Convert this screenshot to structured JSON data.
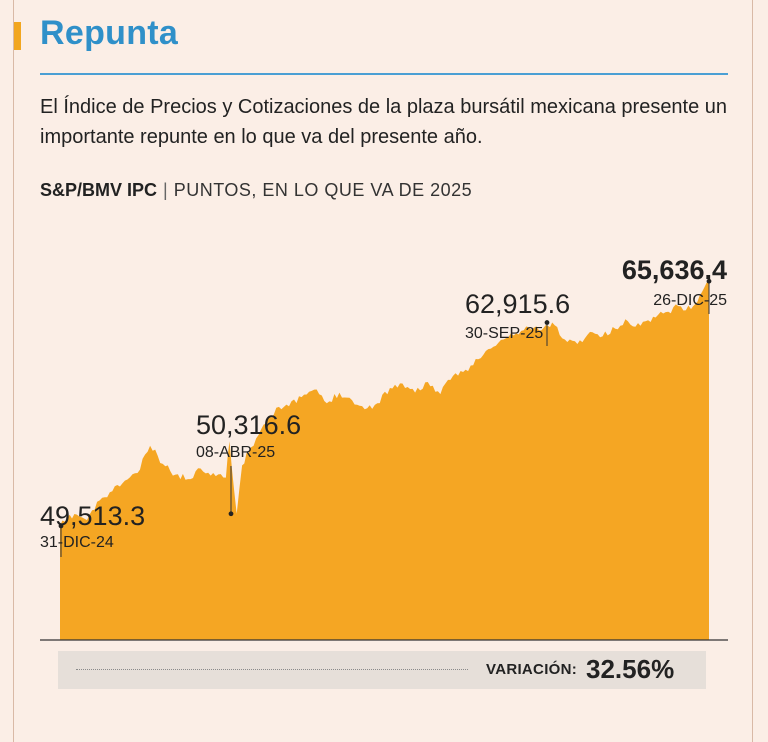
{
  "title": "Repunta",
  "description": "El Índice de Precios y Cotizaciones de la plaza bursátil mexicana presente un importante repunte en lo que va del presente año.",
  "subtitle": {
    "index": "S&P/BMV IPC",
    "separator": "|",
    "unit": "PUNTOS, EN LO QUE VA DE 2025"
  },
  "colors": {
    "title": "#2f90c9",
    "area": "#f5a623",
    "accent": "#f2a61f",
    "background": "#fbeee6"
  },
  "chart_data": {
    "type": "area",
    "title": "S&P/BMV IPC",
    "ylabel": "PUNTOS, EN LO QUE VA DE 2025",
    "x_range": [
      "2024-12-31",
      "2025-12-26"
    ],
    "ylim": [
      42000,
      70000
    ],
    "series": [
      {
        "points": [
          [
            "2024-12-31",
            49513.3
          ],
          [
            "2025-01-08",
            50300
          ],
          [
            "2025-01-15",
            49900
          ],
          [
            "2025-01-22",
            51200
          ],
          [
            "2025-01-29",
            51800
          ],
          [
            "2025-02-05",
            52500
          ],
          [
            "2025-02-12",
            53000
          ],
          [
            "2025-02-19",
            54800
          ],
          [
            "2025-02-26",
            53600
          ],
          [
            "2025-03-05",
            52900
          ],
          [
            "2025-03-12",
            52600
          ],
          [
            "2025-03-19",
            53300
          ],
          [
            "2025-03-26",
            53000
          ],
          [
            "2025-04-02",
            52700
          ],
          [
            "2025-04-04",
            55100
          ],
          [
            "2025-04-08",
            50316.6
          ],
          [
            "2025-04-11",
            53500
          ],
          [
            "2025-04-16",
            54700
          ],
          [
            "2025-04-23",
            56200
          ],
          [
            "2025-04-30",
            57300
          ],
          [
            "2025-05-07",
            57400
          ],
          [
            "2025-05-14",
            58000
          ],
          [
            "2025-05-21",
            58500
          ],
          [
            "2025-05-28",
            57600
          ],
          [
            "2025-06-04",
            58300
          ],
          [
            "2025-06-11",
            57800
          ],
          [
            "2025-06-18",
            57200
          ],
          [
            "2025-06-25",
            57600
          ],
          [
            "2025-07-02",
            58600
          ],
          [
            "2025-07-09",
            58900
          ],
          [
            "2025-07-16",
            58300
          ],
          [
            "2025-07-23",
            59000
          ],
          [
            "2025-07-30",
            58200
          ],
          [
            "2025-08-06",
            59400
          ],
          [
            "2025-08-13",
            59800
          ],
          [
            "2025-08-20",
            60500
          ],
          [
            "2025-08-27",
            61200
          ],
          [
            "2025-09-03",
            61800
          ],
          [
            "2025-09-10",
            62200
          ],
          [
            "2025-09-17",
            62600
          ],
          [
            "2025-09-24",
            62400
          ],
          [
            "2025-09-30",
            62915.6
          ],
          [
            "2025-10-07",
            61800
          ],
          [
            "2025-10-14",
            61500
          ],
          [
            "2025-10-21",
            62300
          ],
          [
            "2025-10-28",
            62000
          ],
          [
            "2025-11-04",
            62500
          ],
          [
            "2025-11-11",
            63000
          ],
          [
            "2025-11-18",
            62700
          ],
          [
            "2025-11-25",
            63300
          ],
          [
            "2025-12-02",
            63600
          ],
          [
            "2025-12-09",
            64000
          ],
          [
            "2025-12-16",
            63800
          ],
          [
            "2025-12-22",
            64900
          ],
          [
            "2025-12-26",
            65636.4
          ]
        ]
      }
    ],
    "annotations": [
      {
        "date": "2024-12-31",
        "value": "49,513.3",
        "label": "31-DIC-24"
      },
      {
        "date": "2025-04-08",
        "value": "50,316.6",
        "label": "08-ABR-25"
      },
      {
        "date": "2025-09-30",
        "value": "62,915.6",
        "label": "30-SEP-25"
      },
      {
        "date": "2025-12-26",
        "value": "65,636.4",
        "label": "26-DIC-25"
      }
    ]
  },
  "variation": {
    "label": "VARIACIÓN:",
    "value": "32.56%"
  }
}
